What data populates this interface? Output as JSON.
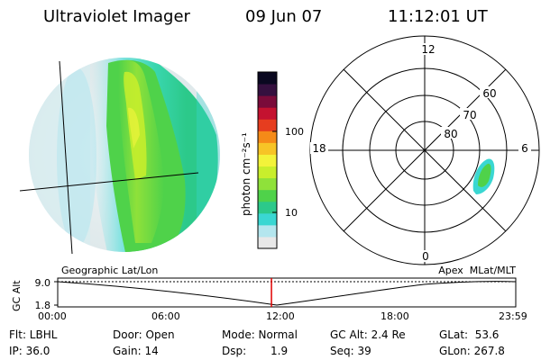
{
  "header": {
    "instrument": "Ultraviolet Imager",
    "date": "09 Jun 07",
    "time": "11:12:01 UT"
  },
  "colorbar": {
    "unit_label": "photon cm⁻²s⁻¹",
    "ticks": [
      "100",
      "10"
    ],
    "scale": "log",
    "colors": [
      "#e8e8e8",
      "#b4e6ee",
      "#3ad7d2",
      "#2cc98a",
      "#4fd24a",
      "#8fe13a",
      "#c9ee2c",
      "#f3f33a",
      "#f7c426",
      "#f58a18",
      "#e63d1f",
      "#c41230",
      "#7a0b3a",
      "#35103f",
      "#0a0820"
    ]
  },
  "polar_plot": {
    "mlt_labels": [
      "12",
      "6",
      "18",
      "0"
    ],
    "mlat_labels": [
      "60",
      "70",
      "80"
    ]
  },
  "timeline": {
    "left_label": "Geographic Lat/Lon",
    "right_label": "Apex  MLat/MLT",
    "axis_title": "GC Alt",
    "y_ticks": [
      "9.0",
      "1.8"
    ],
    "x_ticks": [
      "00:00",
      "06:00",
      "12:00",
      "18:00",
      "23:59"
    ],
    "marker_time": "11:12",
    "marker_color": "#e00000"
  },
  "footer": {
    "flt": "Flt: LBHL",
    "ip": "IP: 36.0",
    "door": "Door: Open",
    "gain": "Gain: 14",
    "mode": "Mode: Normal",
    "dsp_label": "Dsp:",
    "dsp_value": "1.9",
    "gc_alt": "GC Alt: 2.4 Re",
    "seq": "Seq: 39",
    "glat": "GLat:  53.6",
    "glon": "GLon: 267.8"
  }
}
